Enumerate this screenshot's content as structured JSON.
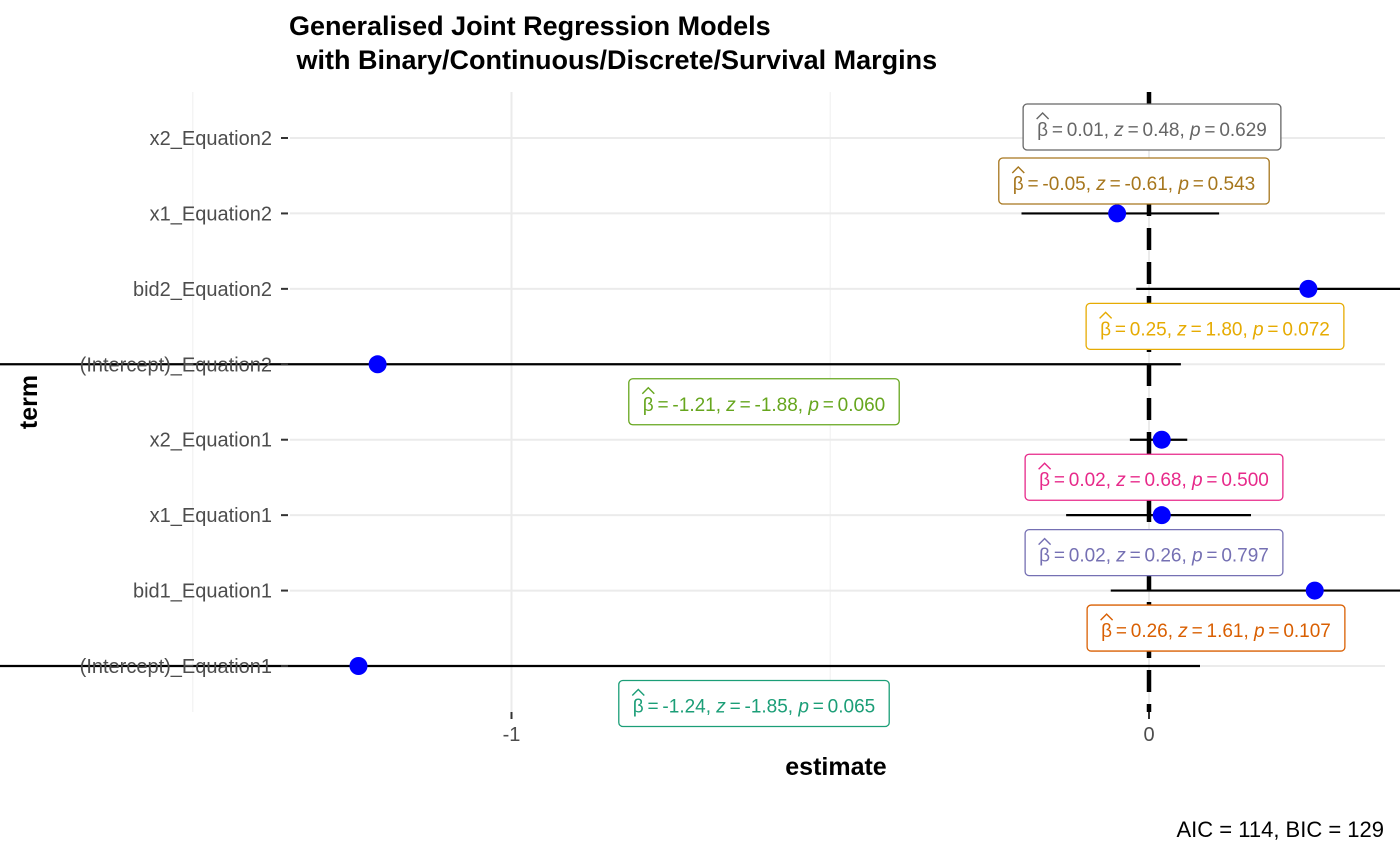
{
  "title_line1": "Generalised Joint Regression Models",
  "title_line2": " with Binary/Continuous/Discrete/Survival Margins",
  "caption": "AIC = 114, BIC = 129",
  "chart_data": {
    "type": "scatter",
    "title": "Generalised Joint Regression Models with Binary/Continuous/Discrete/Survival Margins",
    "xlabel": "estimate",
    "ylabel": "term",
    "xlim": [
      -2.55,
      0.75
    ],
    "x_ticks": [
      "-2",
      "-1",
      "0"
    ],
    "x_tick_values": [
      -2,
      -1,
      0
    ],
    "reference_line_x": 0,
    "grid": true,
    "point_color": "#0000ff",
    "terms": [
      {
        "term": "x2_Equation2",
        "estimate": 0.01,
        "conf_low": 0.01,
        "conf_high": 0.01,
        "label_beta": "0.01",
        "label_z": "0.48",
        "label_p": "0.629",
        "color": "#666666"
      },
      {
        "term": "x1_Equation2",
        "estimate": -0.05,
        "conf_low": -0.2,
        "conf_high": 0.11,
        "label_beta": "-0.05",
        "label_z": "-0.61",
        "label_p": "0.543",
        "color": "#a6761d"
      },
      {
        "term": "bid2_Equation2",
        "estimate": 0.25,
        "conf_low": -0.02,
        "conf_high": 0.52,
        "label_beta": "0.25",
        "label_z": "1.80",
        "label_p": "0.072",
        "color": "#e6ab02"
      },
      {
        "term": "(Intercept)_Equation2",
        "estimate": -1.21,
        "conf_low": -2.47,
        "conf_high": 0.05,
        "label_beta": "-1.21",
        "label_z": "-1.88",
        "label_p": "0.060",
        "color": "#66a61e"
      },
      {
        "term": "x2_Equation1",
        "estimate": 0.02,
        "conf_low": -0.03,
        "conf_high": 0.06,
        "label_beta": "0.02",
        "label_z": "0.68",
        "label_p": "0.500",
        "color": "#e7298a"
      },
      {
        "term": "x1_Equation1",
        "estimate": 0.02,
        "conf_low": -0.13,
        "conf_high": 0.16,
        "label_beta": "0.02",
        "label_z": "0.26",
        "label_p": "0.797",
        "color": "#7570b3"
      },
      {
        "term": "bid1_Equation1",
        "estimate": 0.26,
        "conf_low": -0.06,
        "conf_high": 0.58,
        "label_beta": "0.26",
        "label_z": "1.61",
        "label_p": "0.107",
        "color": "#d95f02"
      },
      {
        "term": "(Intercept)_Equation1",
        "estimate": -1.24,
        "conf_low": -2.55,
        "conf_high": 0.08,
        "label_beta": "-1.24",
        "label_z": "-1.85",
        "label_p": "0.065",
        "color": "#1b9e77"
      }
    ]
  }
}
